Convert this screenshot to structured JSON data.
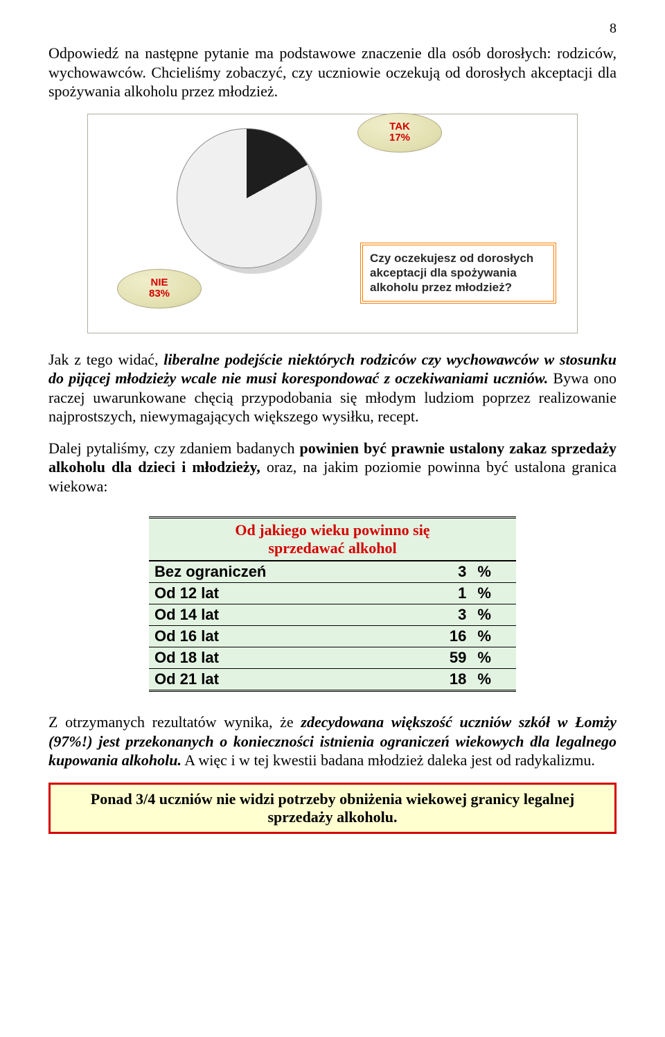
{
  "meta": {
    "page_number": "8"
  },
  "para1": "Odpowiedź na następne pytanie ma podstawowe znaczenie dla osób dorosłych: rodziców, wychowawców. Chcieliśmy zobaczyć, czy uczniowie oczekują od dorosłych akceptacji dla spożywania alkoholu przez młodzież.",
  "chart": {
    "type": "pie",
    "tak_label": "TAK",
    "tak_value": "17%",
    "nie_label": "NIE",
    "nie_value": "83%",
    "question": "Czy oczekujesz od dorosłych akceptacji dla spożywania alkoholu przez młodzież?",
    "colors": {
      "slice_yes": "#1e1e1e",
      "slice_no": "#f0f0f0",
      "callout_fill": "#e2dfb0",
      "callout_text": "#d40000",
      "question_border": "#ff7a00",
      "frame_border": "#b0aca0"
    },
    "angles": {
      "yes_deg": 61.2
    }
  },
  "para2_a": "Jak z tego widać,",
  "para2_b": " liberalne podejście niektórych rodziców czy wychowawców w stosunku do pijącej młodzieży wcale nie musi korespondować z oczekiwaniami uczniów.",
  "para2_c": " Bywa ono raczej uwarunkowane chęcią przypodobania się młodym ludziom poprzez realizowanie najprostszych, niewymagających większego wysiłku, recept.",
  "para3": "Dalej pytaliśmy, czy zdaniem badanych powinien być prawnie ustalony zakaz sprzedaży alkoholu dla dzieci i młodzieży, oraz, na jakim poziomie powinna być ustalona granica wiekowa:",
  "table": {
    "title_line1": "Od jakiego wieku powinno się",
    "title_line2": "sprzedawać alkohol",
    "rows": [
      {
        "label": "Bez ograniczeń",
        "value": "3",
        "pct": "%"
      },
      {
        "label": "Od 12 lat",
        "value": "1",
        "pct": "%"
      },
      {
        "label": "Od 14 lat",
        "value": "3",
        "pct": "%"
      },
      {
        "label": "Od 16 lat",
        "value": "16",
        "pct": "%"
      },
      {
        "label": "Od 18 lat",
        "value": "59",
        "pct": "%"
      },
      {
        "label": "Od 21 lat",
        "value": "18",
        "pct": "%"
      }
    ],
    "colors": {
      "row_bg": "#e3f3e2",
      "title_text": "#d40000"
    }
  },
  "para4_a": "Z otrzymanych rezultatów wynika, że ",
  "para4_b": "zdecydowana większość uczniów szkół w Łomży (97%!) jest przekonanych o konieczności istnienia ograniczeń wiekowych dla legalnego kupowania alkoholu.",
  "para4_c": " A więc i w tej kwestii badana młodzież daleka jest od radykalizmu.",
  "footer": "Ponad 3/4 uczniów nie widzi potrzeby obniżenia wiekowej granicy legalnej sprzedaży alkoholu.",
  "footer_colors": {
    "border": "#d40000",
    "bg": "#ffffd0"
  }
}
